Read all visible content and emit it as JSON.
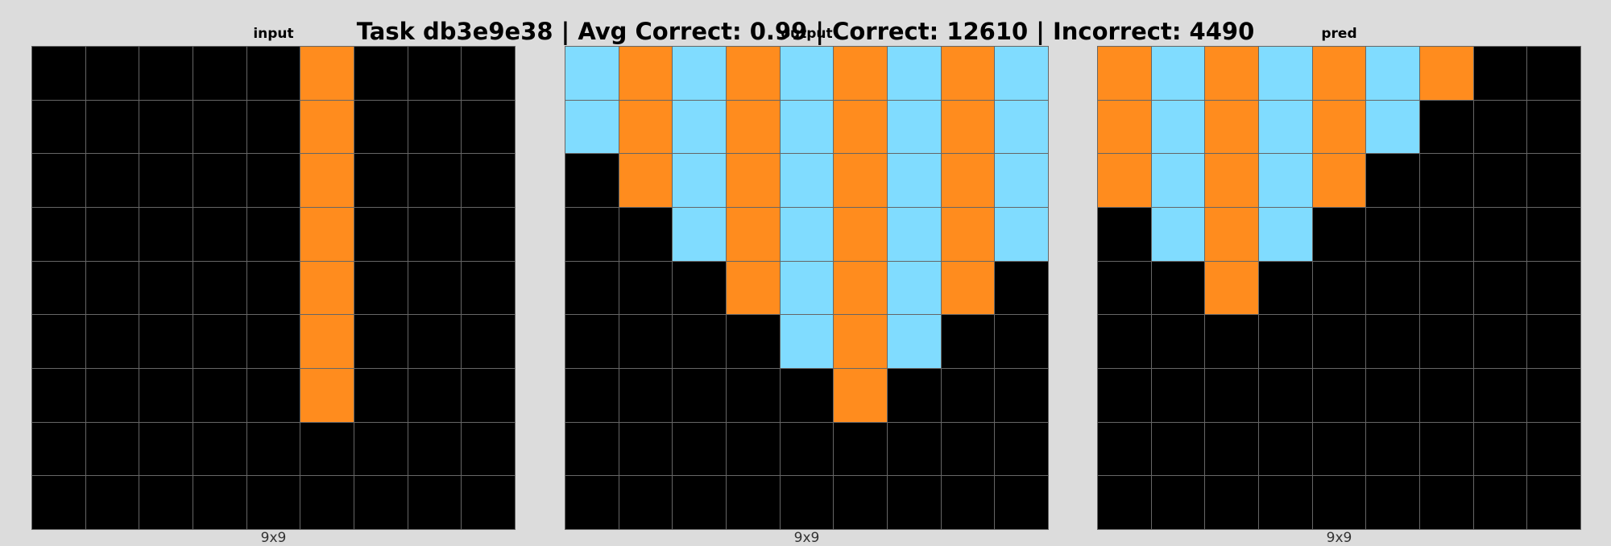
{
  "header": {
    "title": "Task db3e9e38 | Avg Correct: 0.99 | Correct: 12610 | Incorrect: 4490"
  },
  "colors": {
    "0": "#000000",
    "7": "#ff8c1e",
    "8": "#80dcff",
    "background": "#dcdcdc",
    "gridline": "#666666"
  },
  "panels": [
    {
      "title": "input",
      "dims": "9x9",
      "grid": [
        [
          0,
          0,
          0,
          0,
          0,
          7,
          0,
          0,
          0
        ],
        [
          0,
          0,
          0,
          0,
          0,
          7,
          0,
          0,
          0
        ],
        [
          0,
          0,
          0,
          0,
          0,
          7,
          0,
          0,
          0
        ],
        [
          0,
          0,
          0,
          0,
          0,
          7,
          0,
          0,
          0
        ],
        [
          0,
          0,
          0,
          0,
          0,
          7,
          0,
          0,
          0
        ],
        [
          0,
          0,
          0,
          0,
          0,
          7,
          0,
          0,
          0
        ],
        [
          0,
          0,
          0,
          0,
          0,
          7,
          0,
          0,
          0
        ],
        [
          0,
          0,
          0,
          0,
          0,
          0,
          0,
          0,
          0
        ],
        [
          0,
          0,
          0,
          0,
          0,
          0,
          0,
          0,
          0
        ]
      ]
    },
    {
      "title": "output",
      "dims": "9x9",
      "grid": [
        [
          8,
          7,
          8,
          7,
          8,
          7,
          8,
          7,
          8
        ],
        [
          8,
          7,
          8,
          7,
          8,
          7,
          8,
          7,
          8
        ],
        [
          0,
          7,
          8,
          7,
          8,
          7,
          8,
          7,
          8
        ],
        [
          0,
          0,
          8,
          7,
          8,
          7,
          8,
          7,
          8
        ],
        [
          0,
          0,
          0,
          7,
          8,
          7,
          8,
          7,
          0
        ],
        [
          0,
          0,
          0,
          0,
          8,
          7,
          8,
          0,
          0
        ],
        [
          0,
          0,
          0,
          0,
          0,
          7,
          0,
          0,
          0
        ],
        [
          0,
          0,
          0,
          0,
          0,
          0,
          0,
          0,
          0
        ],
        [
          0,
          0,
          0,
          0,
          0,
          0,
          0,
          0,
          0
        ]
      ]
    },
    {
      "title": "pred",
      "dims": "9x9",
      "grid": [
        [
          7,
          8,
          7,
          8,
          7,
          8,
          7,
          0,
          0
        ],
        [
          7,
          8,
          7,
          8,
          7,
          8,
          0,
          0,
          0
        ],
        [
          7,
          8,
          7,
          8,
          7,
          0,
          0,
          0,
          0
        ],
        [
          0,
          8,
          7,
          8,
          0,
          0,
          0,
          0,
          0
        ],
        [
          0,
          0,
          7,
          0,
          0,
          0,
          0,
          0,
          0
        ],
        [
          0,
          0,
          0,
          0,
          0,
          0,
          0,
          0,
          0
        ],
        [
          0,
          0,
          0,
          0,
          0,
          0,
          0,
          0,
          0
        ],
        [
          0,
          0,
          0,
          0,
          0,
          0,
          0,
          0,
          0
        ],
        [
          0,
          0,
          0,
          0,
          0,
          0,
          0,
          0,
          0
        ]
      ]
    }
  ]
}
